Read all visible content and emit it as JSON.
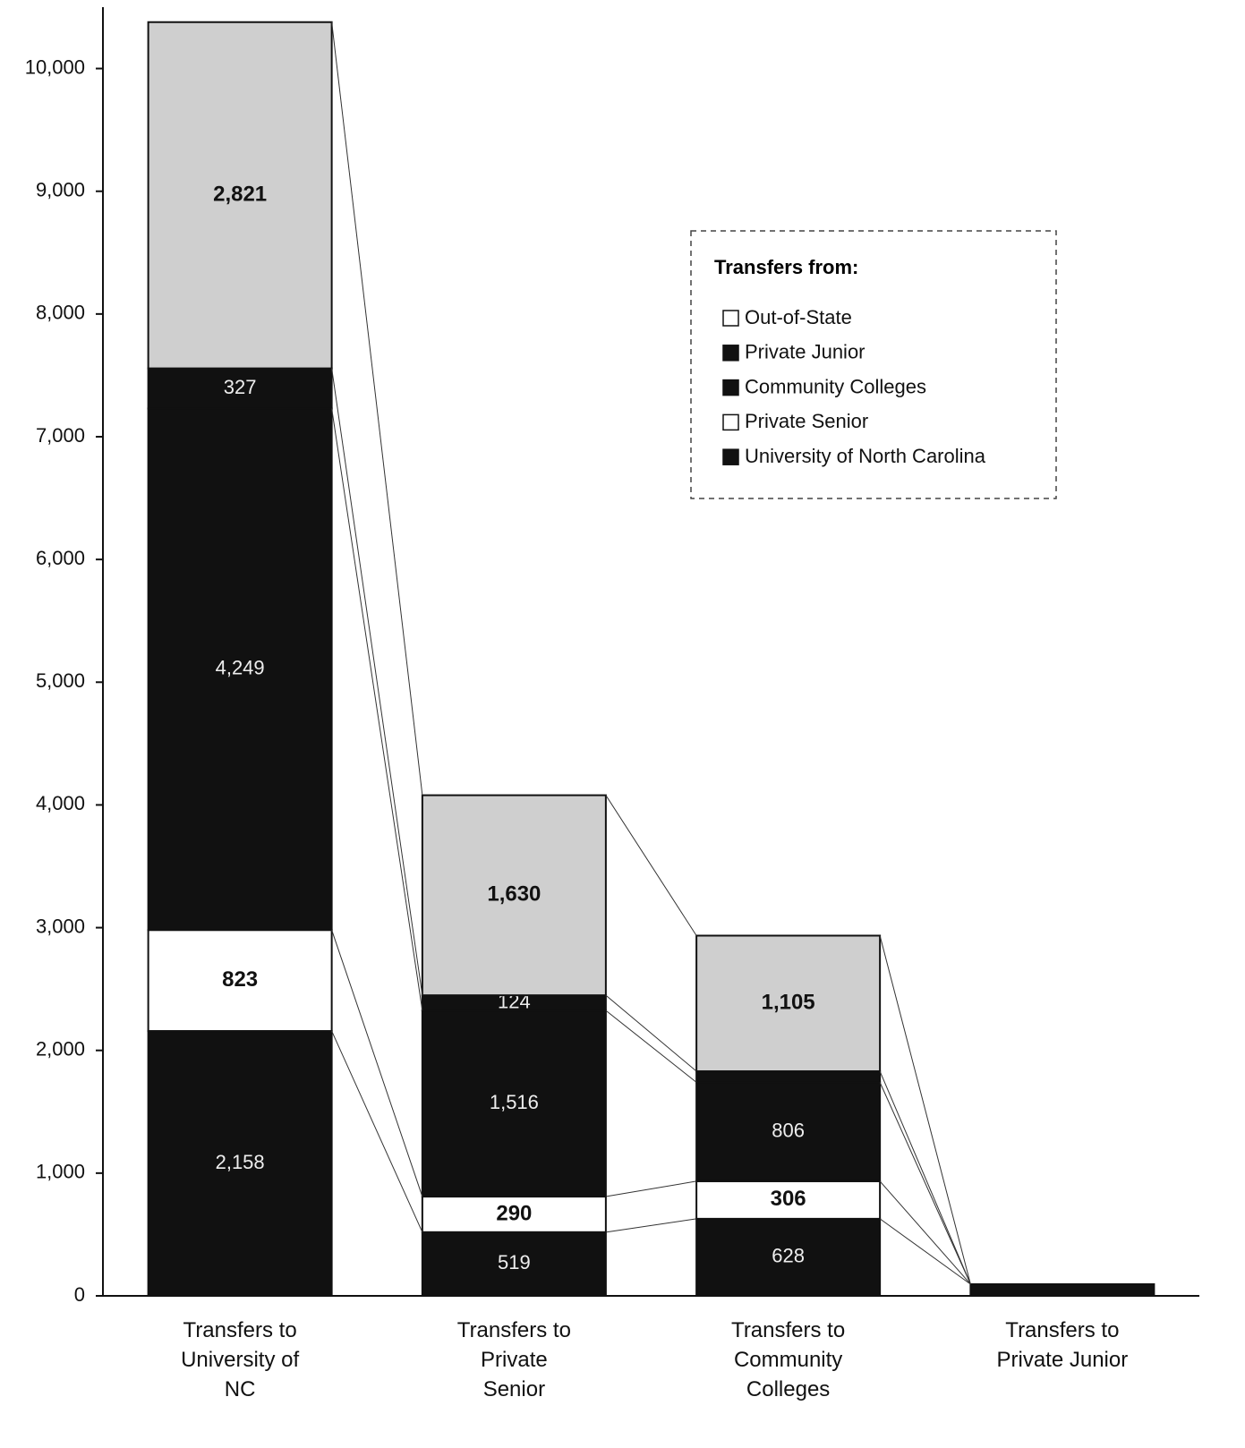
{
  "chart_data": {
    "type": "stacked_bar",
    "categories": [
      "Transfers to University of NC",
      "Transfers to Private Senior",
      "Transfers to Community Colleges",
      "Transfers to Private Junior"
    ],
    "series": [
      {
        "name": "University of North Carolina",
        "color": "#111111",
        "values": [
          2158,
          519,
          628,
          95
        ],
        "value_labels": [
          "2,158",
          "519",
          "628",
          null
        ]
      },
      {
        "name": "Private Senior",
        "color": "#ffffff",
        "values": [
          823,
          290,
          306,
          null
        ],
        "value_labels": [
          "823",
          "290",
          "306",
          null
        ]
      },
      {
        "name": "Community Colleges",
        "color": "#111111",
        "values": [
          4249,
          1516,
          806,
          null
        ],
        "value_labels": [
          "4,249",
          "1,516",
          "806",
          null
        ]
      },
      {
        "name": "Private Junior",
        "color": "#111111",
        "values": [
          327,
          124,
          90,
          null
        ],
        "value_labels": [
          "327",
          "124",
          null,
          null
        ]
      },
      {
        "name": "Out-of-State",
        "color": "#cfcfcf",
        "values": [
          2821,
          1630,
          1105,
          null
        ],
        "value_labels": [
          "2,821",
          "1,630",
          "1,105",
          null
        ]
      }
    ],
    "legend_title": "Transfers from:",
    "legend_order": [
      4,
      3,
      2,
      1,
      0
    ],
    "ylim": [
      0,
      10500
    ],
    "yticks": [
      0,
      {
        "value": 1000,
        "label": "1,000"
      },
      {
        "value": 2000,
        "label": "2,000"
      },
      {
        "value": 3000,
        "label": "3,000"
      },
      {
        "value": 4000,
        "label": "4,000"
      },
      {
        "value": 5000,
        "label": "5,000"
      },
      {
        "value": 6000,
        "label": "6,000"
      },
      {
        "value": 7000,
        "label": "7,000"
      },
      {
        "value": 8000,
        "label": "8,000"
      },
      {
        "value": 9000,
        "label": "9,000"
      },
      {
        "value": 10000,
        "label": "10,000"
      }
    ]
  }
}
